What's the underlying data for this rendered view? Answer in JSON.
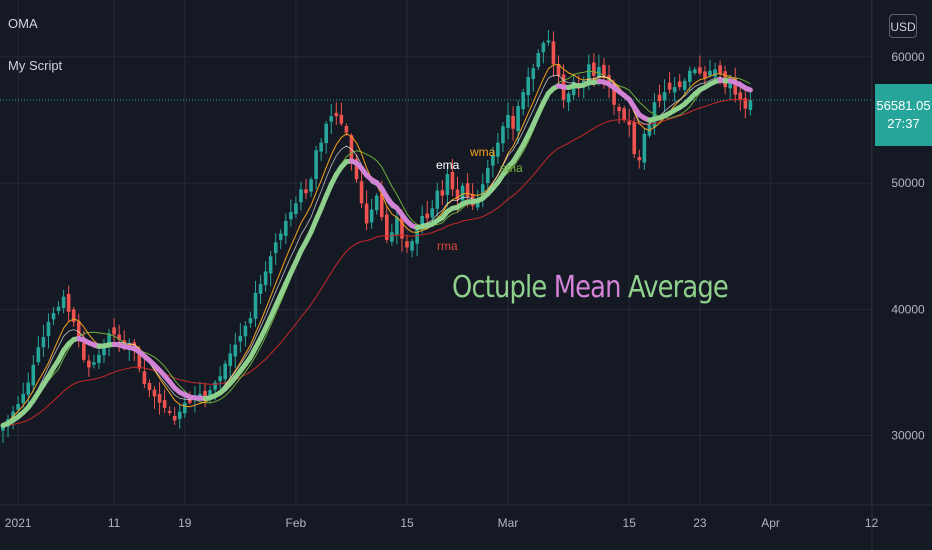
{
  "header": {
    "symbol": "OMA",
    "script_name": "My Script"
  },
  "currency_button": "USD",
  "price_badge": {
    "price": "56581.05",
    "countdown": "27:37"
  },
  "watermark": {
    "part1": "Octuple",
    "part2": "Mean",
    "part3": "Average"
  },
  "ma_labels": {
    "ema": "ema",
    "wma": "wma",
    "sma": "sma",
    "rma": "rma"
  },
  "colors": {
    "background": "#151924",
    "up": "#26a69a",
    "down": "#ef5350",
    "ema": "#ffffff",
    "wma": "#f7a21b",
    "sma": "#6fae3a",
    "rma": "#c62828",
    "oma_up": "#8fd18c",
    "oma_down": "#d283d6",
    "price_line": "#26a69a"
  },
  "chart_data": {
    "type": "candlestick",
    "title": "OMA",
    "y_axis": {
      "range": [
        24500,
        64500
      ],
      "ticks": [
        30000,
        40000,
        50000,
        60000
      ]
    },
    "x_axis": {
      "ticks": [
        "2021",
        "11",
        "19",
        "Feb",
        "15",
        "Mar",
        "15",
        "23",
        "Apr",
        "12"
      ],
      "tick_bar_index": [
        3,
        22,
        36,
        58,
        80,
        100,
        124,
        138,
        152,
        172
      ]
    },
    "last_price": 56581.05,
    "overlays": [
      "ema",
      "wma",
      "sma",
      "rma",
      "Octuple Mean Average"
    ],
    "closes": [
      30800,
      31300,
      31900,
      32500,
      33300,
      34200,
      35600,
      37000,
      37800,
      39000,
      39700,
      40200,
      41000,
      39800,
      39000,
      37500,
      36000,
      35400,
      35800,
      36400,
      37200,
      38100,
      38000,
      37600,
      37100,
      37200,
      36800,
      35300,
      34100,
      33600,
      33100,
      32600,
      32200,
      31800,
      31200,
      31900,
      32600,
      32600,
      33200,
      33300,
      33000,
      33600,
      34200,
      34700,
      35700,
      36500,
      37200,
      37900,
      38700,
      39300,
      41300,
      42000,
      43000,
      44200,
      45300,
      46000,
      47000,
      47700,
      48400,
      49500,
      49200,
      50300,
      52600,
      53200,
      54700,
      55300,
      55300,
      54700,
      54000,
      51700,
      50300,
      48400,
      46800,
      47900,
      49000,
      47300,
      45500,
      46100,
      47300,
      45600,
      44900,
      45400,
      46400,
      47400,
      47200,
      48000,
      49400,
      49000,
      50700,
      49500,
      48700,
      49800,
      48900,
      48200,
      48600,
      49900,
      51200,
      52200,
      53200,
      54500,
      55400,
      54300,
      56100,
      57200,
      58400,
      59100,
      60300,
      61100,
      61300,
      59400,
      58500,
      56600,
      57100,
      58000,
      57500,
      58100,
      59400,
      58500,
      59200,
      58400,
      57700,
      56200,
      55700,
      55000,
      54600,
      52300,
      51800,
      53900,
      54600,
      56400,
      56500,
      57200,
      57400,
      57600,
      57600,
      58100,
      58900,
      59000,
      58700,
      58300,
      58900,
      59000,
      58700,
      57600,
      58200,
      57000,
      56600,
      55900,
      56581
    ],
    "note": "closing prices per daily bar, estimated from the candle positions"
  }
}
